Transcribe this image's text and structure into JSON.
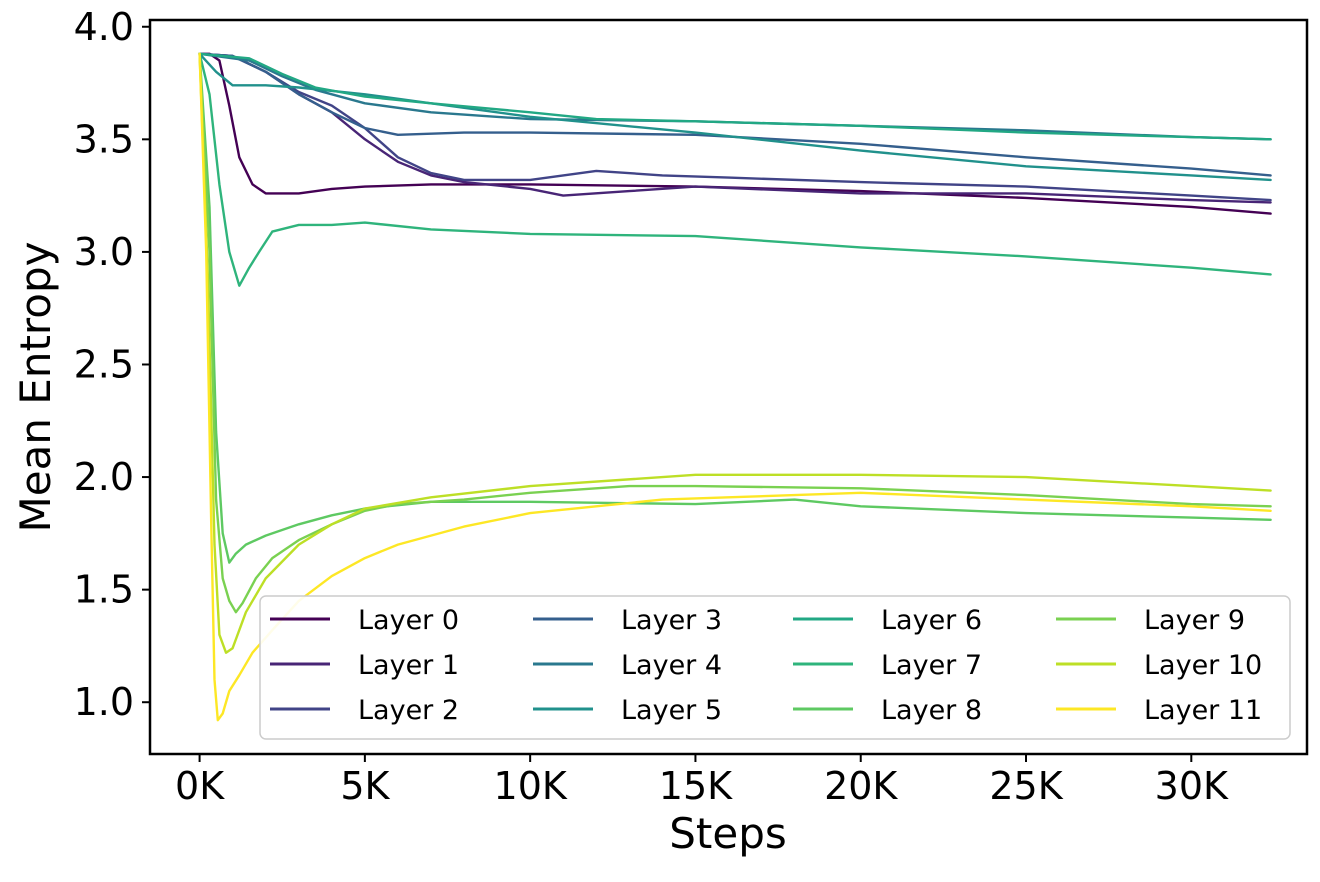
{
  "chart_data": {
    "type": "line",
    "title": "",
    "xlabel": "Steps",
    "ylabel": "Mean Entropy",
    "xlim": [
      -1500,
      33500
    ],
    "ylim": [
      0.77,
      4.03
    ],
    "xticks": [
      0,
      5000,
      10000,
      15000,
      20000,
      25000,
      30000
    ],
    "xtick_labels": [
      "0K",
      "5K",
      "10K",
      "15K",
      "20K",
      "25K",
      "30K"
    ],
    "yticks": [
      1.0,
      1.5,
      2.0,
      2.5,
      3.0,
      3.5,
      4.0
    ],
    "ytick_labels": [
      "1.0",
      "1.5",
      "2.0",
      "2.5",
      "3.0",
      "3.5",
      "4.0"
    ],
    "grid": false,
    "legend": {
      "placement": "lower-right",
      "columns": 4
    },
    "series": [
      {
        "name": "Layer 0",
        "color": "#440154",
        "points": [
          [
            0,
            3.88
          ],
          [
            300,
            3.88
          ],
          [
            600,
            3.85
          ],
          [
            900,
            3.65
          ],
          [
            1200,
            3.42
          ],
          [
            1600,
            3.3
          ],
          [
            2000,
            3.26
          ],
          [
            3000,
            3.26
          ],
          [
            4000,
            3.28
          ],
          [
            5000,
            3.29
          ],
          [
            7000,
            3.3
          ],
          [
            10000,
            3.3
          ],
          [
            15000,
            3.29
          ],
          [
            20000,
            3.27
          ],
          [
            25000,
            3.24
          ],
          [
            30000,
            3.2
          ],
          [
            32400,
            3.17
          ]
        ]
      },
      {
        "name": "Layer 1",
        "color": "#482576",
        "points": [
          [
            0,
            3.88
          ],
          [
            1000,
            3.87
          ],
          [
            2000,
            3.8
          ],
          [
            3000,
            3.7
          ],
          [
            4000,
            3.62
          ],
          [
            5000,
            3.5
          ],
          [
            6000,
            3.4
          ],
          [
            7000,
            3.34
          ],
          [
            8000,
            3.31
          ],
          [
            10000,
            3.28
          ],
          [
            11000,
            3.25
          ],
          [
            13000,
            3.27
          ],
          [
            15000,
            3.29
          ],
          [
            20000,
            3.26
          ],
          [
            25000,
            3.26
          ],
          [
            30000,
            3.23
          ],
          [
            32400,
            3.22
          ]
        ]
      },
      {
        "name": "Layer 2",
        "color": "#414487",
        "points": [
          [
            0,
            3.88
          ],
          [
            1000,
            3.87
          ],
          [
            2000,
            3.8
          ],
          [
            3000,
            3.71
          ],
          [
            4000,
            3.65
          ],
          [
            5000,
            3.55
          ],
          [
            6000,
            3.42
          ],
          [
            7000,
            3.35
          ],
          [
            8000,
            3.32
          ],
          [
            10000,
            3.32
          ],
          [
            12000,
            3.36
          ],
          [
            14000,
            3.34
          ],
          [
            16000,
            3.33
          ],
          [
            20000,
            3.31
          ],
          [
            25000,
            3.29
          ],
          [
            30000,
            3.25
          ],
          [
            32400,
            3.23
          ]
        ]
      },
      {
        "name": "Layer 3",
        "color": "#355F8D",
        "points": [
          [
            0,
            3.88
          ],
          [
            1000,
            3.87
          ],
          [
            2000,
            3.8
          ],
          [
            3000,
            3.7
          ],
          [
            4000,
            3.62
          ],
          [
            5000,
            3.55
          ],
          [
            6000,
            3.52
          ],
          [
            8000,
            3.53
          ],
          [
            10000,
            3.53
          ],
          [
            15000,
            3.52
          ],
          [
            20000,
            3.48
          ],
          [
            25000,
            3.42
          ],
          [
            30000,
            3.37
          ],
          [
            32400,
            3.34
          ]
        ]
      },
      {
        "name": "Layer 4",
        "color": "#2A788E",
        "points": [
          [
            0,
            3.88
          ],
          [
            1500,
            3.85
          ],
          [
            2500,
            3.78
          ],
          [
            3500,
            3.72
          ],
          [
            5000,
            3.66
          ],
          [
            7000,
            3.62
          ],
          [
            10000,
            3.59
          ],
          [
            15000,
            3.58
          ],
          [
            20000,
            3.56
          ],
          [
            25000,
            3.54
          ],
          [
            30000,
            3.51
          ],
          [
            32400,
            3.5
          ]
        ]
      },
      {
        "name": "Layer 5",
        "color": "#21918C",
        "points": [
          [
            0,
            3.88
          ],
          [
            500,
            3.8
          ],
          [
            1000,
            3.74
          ],
          [
            2000,
            3.74
          ],
          [
            3000,
            3.73
          ],
          [
            5000,
            3.7
          ],
          [
            7000,
            3.66
          ],
          [
            10000,
            3.6
          ],
          [
            15000,
            3.53
          ],
          [
            20000,
            3.45
          ],
          [
            25000,
            3.38
          ],
          [
            30000,
            3.34
          ],
          [
            32400,
            3.32
          ]
        ]
      },
      {
        "name": "Layer 6",
        "color": "#22A884",
        "points": [
          [
            0,
            3.88
          ],
          [
            1500,
            3.86
          ],
          [
            2500,
            3.79
          ],
          [
            3500,
            3.73
          ],
          [
            5000,
            3.69
          ],
          [
            7000,
            3.66
          ],
          [
            10000,
            3.62
          ],
          [
            12000,
            3.59
          ],
          [
            15000,
            3.58
          ],
          [
            20000,
            3.56
          ],
          [
            25000,
            3.53
          ],
          [
            30000,
            3.51
          ],
          [
            32400,
            3.5
          ]
        ]
      },
      {
        "name": "Layer 7",
        "color": "#2FB47C",
        "points": [
          [
            0,
            3.88
          ],
          [
            300,
            3.7
          ],
          [
            600,
            3.3
          ],
          [
            900,
            3.0
          ],
          [
            1200,
            2.85
          ],
          [
            1500,
            2.93
          ],
          [
            1800,
            3.0
          ],
          [
            2200,
            3.09
          ],
          [
            3000,
            3.12
          ],
          [
            4000,
            3.12
          ],
          [
            5000,
            3.13
          ],
          [
            7000,
            3.1
          ],
          [
            10000,
            3.08
          ],
          [
            15000,
            3.07
          ],
          [
            20000,
            3.02
          ],
          [
            25000,
            2.98
          ],
          [
            30000,
            2.93
          ],
          [
            32400,
            2.9
          ]
        ]
      },
      {
        "name": "Layer 8",
        "color": "#5EC962",
        "points": [
          [
            0,
            3.88
          ],
          [
            300,
            3.2
          ],
          [
            500,
            2.2
          ],
          [
            700,
            1.75
          ],
          [
            900,
            1.62
          ],
          [
            1100,
            1.66
          ],
          [
            1400,
            1.7
          ],
          [
            2000,
            1.74
          ],
          [
            3000,
            1.79
          ],
          [
            4000,
            1.83
          ],
          [
            5000,
            1.86
          ],
          [
            7000,
            1.89
          ],
          [
            10000,
            1.89
          ],
          [
            15000,
            1.88
          ],
          [
            18000,
            1.9
          ],
          [
            20000,
            1.87
          ],
          [
            25000,
            1.84
          ],
          [
            30000,
            1.82
          ],
          [
            32400,
            1.81
          ]
        ]
      },
      {
        "name": "Layer 9",
        "color": "#7AD151",
        "points": [
          [
            0,
            3.88
          ],
          [
            300,
            3.0
          ],
          [
            500,
            1.9
          ],
          [
            700,
            1.55
          ],
          [
            900,
            1.45
          ],
          [
            1100,
            1.4
          ],
          [
            1300,
            1.44
          ],
          [
            1700,
            1.55
          ],
          [
            2200,
            1.64
          ],
          [
            3000,
            1.72
          ],
          [
            4000,
            1.79
          ],
          [
            5000,
            1.85
          ],
          [
            6000,
            1.88
          ],
          [
            8000,
            1.9
          ],
          [
            10000,
            1.93
          ],
          [
            13000,
            1.96
          ],
          [
            15000,
            1.96
          ],
          [
            20000,
            1.95
          ],
          [
            25000,
            1.92
          ],
          [
            30000,
            1.88
          ],
          [
            32400,
            1.87
          ]
        ]
      },
      {
        "name": "Layer 10",
        "color": "#BDDF26",
        "points": [
          [
            0,
            3.88
          ],
          [
            250,
            2.9
          ],
          [
            450,
            1.7
          ],
          [
            600,
            1.3
          ],
          [
            800,
            1.22
          ],
          [
            1000,
            1.24
          ],
          [
            1400,
            1.4
          ],
          [
            2000,
            1.55
          ],
          [
            3000,
            1.7
          ],
          [
            4000,
            1.79
          ],
          [
            5000,
            1.86
          ],
          [
            7000,
            1.91
          ],
          [
            10000,
            1.96
          ],
          [
            15000,
            2.01
          ],
          [
            20000,
            2.01
          ],
          [
            25000,
            2.0
          ],
          [
            30000,
            1.96
          ],
          [
            32400,
            1.94
          ]
        ]
      },
      {
        "name": "Layer 11",
        "color": "#FDE725",
        "points": [
          [
            0,
            3.88
          ],
          [
            200,
            3.0
          ],
          [
            350,
            1.8
          ],
          [
            450,
            1.1
          ],
          [
            550,
            0.92
          ],
          [
            700,
            0.95
          ],
          [
            900,
            1.05
          ],
          [
            1200,
            1.12
          ],
          [
            1600,
            1.22
          ],
          [
            2200,
            1.32
          ],
          [
            3000,
            1.45
          ],
          [
            4000,
            1.56
          ],
          [
            5000,
            1.64
          ],
          [
            6000,
            1.7
          ],
          [
            8000,
            1.78
          ],
          [
            10000,
            1.84
          ],
          [
            12000,
            1.87
          ],
          [
            14000,
            1.9
          ],
          [
            16000,
            1.91
          ],
          [
            18000,
            1.92
          ],
          [
            20000,
            1.93
          ],
          [
            25000,
            1.9
          ],
          [
            30000,
            1.87
          ],
          [
            32400,
            1.85
          ]
        ]
      }
    ]
  }
}
